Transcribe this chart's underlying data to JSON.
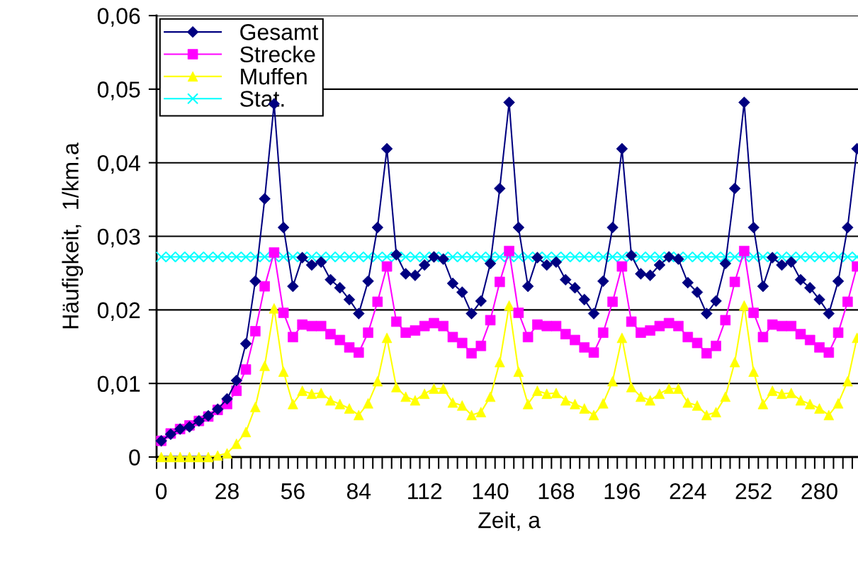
{
  "chart_data": {
    "type": "line",
    "xlabel": "Zeit, a",
    "ylabel": "Häufigkeit,  1/km.a",
    "categories": [
      "0",
      null,
      null,
      null,
      null,
      null,
      null,
      "28",
      null,
      null,
      null,
      null,
      null,
      null,
      "56",
      null,
      null,
      null,
      null,
      null,
      null,
      "84",
      null,
      null,
      null,
      null,
      null,
      null,
      "112",
      null,
      null,
      null,
      null,
      null,
      null,
      "140",
      null,
      null,
      null,
      null,
      null,
      null,
      "168",
      null,
      null,
      null,
      null,
      null,
      null,
      "196",
      null,
      null,
      null,
      null,
      null,
      null,
      "224",
      null,
      null,
      null,
      null,
      null,
      null,
      "252",
      null,
      null,
      null,
      null,
      null,
      null,
      "280",
      null,
      null,
      null,
      null
    ],
    "ylim": [
      0,
      0.06
    ],
    "yticks": [
      0,
      {
        "value": 0.01,
        "label": "0,01"
      },
      {
        "value": 0.02,
        "label": "0,02"
      },
      {
        "value": 0.03,
        "label": "0,03"
      },
      {
        "value": 0.04,
        "label": "0,04"
      },
      {
        "value": 0.05,
        "label": "0,05"
      },
      {
        "value": 0.06,
        "label": "0,06"
      }
    ],
    "grid": "y",
    "legend": "top left",
    "line_style": "solid",
    "series": [
      {
        "name": "Gesamt",
        "color": "#000080",
        "marker": "diamond",
        "values": [
          0.0022,
          0.0031,
          0.0038,
          0.0041,
          0.0049,
          0.0056,
          0.0065,
          0.0079,
          0.0104,
          0.0154,
          0.0239,
          0.0351,
          0.048,
          0.0312,
          0.0232,
          0.0271,
          0.0261,
          0.0265,
          0.0241,
          0.023,
          0.0214,
          0.0195,
          0.0239,
          0.0312,
          0.0419,
          0.0275,
          0.0249,
          0.0247,
          0.0261,
          0.0272,
          0.0269,
          0.0236,
          0.0224,
          0.0195,
          0.0212,
          0.0263,
          0.0365,
          0.0482,
          0.0312,
          0.0232,
          0.0271,
          0.0261,
          0.0265,
          0.0241,
          0.023,
          0.0214,
          0.0195,
          0.0239,
          0.0312,
          0.0419,
          0.0274,
          0.0249,
          0.0247,
          0.0261,
          0.0272,
          0.0269,
          0.0237,
          0.0224,
          0.0195,
          0.0212,
          0.0263,
          0.0365,
          0.0482,
          0.0312,
          0.0232,
          0.0271,
          0.0261,
          0.0265,
          0.0241,
          0.023,
          0.0214,
          0.0195,
          0.0239,
          0.0312,
          0.0419
        ]
      },
      {
        "name": "Strecke",
        "color": "#ff00ff",
        "marker": "square",
        "values": [
          0.0022,
          0.0032,
          0.0038,
          0.0043,
          0.0049,
          0.0055,
          0.0064,
          0.0072,
          0.009,
          0.0119,
          0.0171,
          0.0232,
          0.0278,
          0.0196,
          0.0163,
          0.018,
          0.0178,
          0.0178,
          0.0167,
          0.0159,
          0.0149,
          0.0142,
          0.0169,
          0.0211,
          0.0259,
          0.0184,
          0.0169,
          0.0172,
          0.0178,
          0.0182,
          0.0178,
          0.0163,
          0.0155,
          0.0141,
          0.0151,
          0.0186,
          0.0238,
          0.028,
          0.0196,
          0.0163,
          0.018,
          0.0178,
          0.0178,
          0.0167,
          0.0159,
          0.0149,
          0.0142,
          0.0169,
          0.0211,
          0.0259,
          0.0184,
          0.0169,
          0.0172,
          0.0178,
          0.0182,
          0.0178,
          0.0163,
          0.0155,
          0.0141,
          0.0151,
          0.0186,
          0.0238,
          0.028,
          0.0196,
          0.0163,
          0.018,
          0.0178,
          0.0178,
          0.0167,
          0.0159,
          0.0149,
          0.0142,
          0.0169,
          0.0211,
          0.0259
        ]
      },
      {
        "name": "Muffen",
        "color": "#ffff00",
        "marker": "triangle",
        "values": [
          0.0,
          0.0,
          0.0,
          0.0,
          0.0,
          0.0,
          0.0002,
          0.0005,
          0.0018,
          0.0034,
          0.0068,
          0.0124,
          0.0202,
          0.0116,
          0.0072,
          0.009,
          0.0086,
          0.0087,
          0.0077,
          0.0072,
          0.0066,
          0.0057,
          0.0073,
          0.0103,
          0.0162,
          0.0095,
          0.0082,
          0.0077,
          0.0086,
          0.0093,
          0.0093,
          0.0074,
          0.007,
          0.0057,
          0.0061,
          0.0082,
          0.0129,
          0.0206,
          0.0116,
          0.0072,
          0.009,
          0.0086,
          0.0087,
          0.0077,
          0.0072,
          0.0066,
          0.0057,
          0.0073,
          0.0103,
          0.0162,
          0.0095,
          0.0082,
          0.0077,
          0.0086,
          0.0093,
          0.0093,
          0.0074,
          0.007,
          0.0057,
          0.0061,
          0.0082,
          0.0129,
          0.0206,
          0.0116,
          0.0072,
          0.009,
          0.0086,
          0.0087,
          0.0077,
          0.0072,
          0.0066,
          0.0057,
          0.0073,
          0.0103,
          0.0162
        ]
      },
      {
        "name": "Stat.",
        "color": "#00ffff",
        "marker": "cross",
        "values": [
          0.0272,
          0.0272,
          0.0272,
          0.0272,
          0.0272,
          0.0272,
          0.0272,
          0.0272,
          0.0272,
          0.0272,
          0.0272,
          0.0272,
          0.0272,
          0.0272,
          0.0272,
          0.0272,
          0.0272,
          0.0272,
          0.0272,
          0.0272,
          0.0272,
          0.0272,
          0.0272,
          0.0272,
          0.0272,
          0.0272,
          0.0272,
          0.0272,
          0.0272,
          0.0272,
          0.0272,
          0.0272,
          0.0272,
          0.0272,
          0.0272,
          0.0272,
          0.0272,
          0.0272,
          0.0272,
          0.0272,
          0.0272,
          0.0272,
          0.0272,
          0.0272,
          0.0272,
          0.0272,
          0.0272,
          0.0272,
          0.0272,
          0.0272,
          0.0272,
          0.0272,
          0.0272,
          0.0272,
          0.0272,
          0.0272,
          0.0272,
          0.0272,
          0.0272,
          0.0272,
          0.0272,
          0.0272,
          0.0272,
          0.0272,
          0.0272,
          0.0272,
          0.0272,
          0.0272,
          0.0272,
          0.0272,
          0.0272,
          0.0272,
          0.0272,
          0.0272,
          0.0272
        ]
      }
    ]
  }
}
